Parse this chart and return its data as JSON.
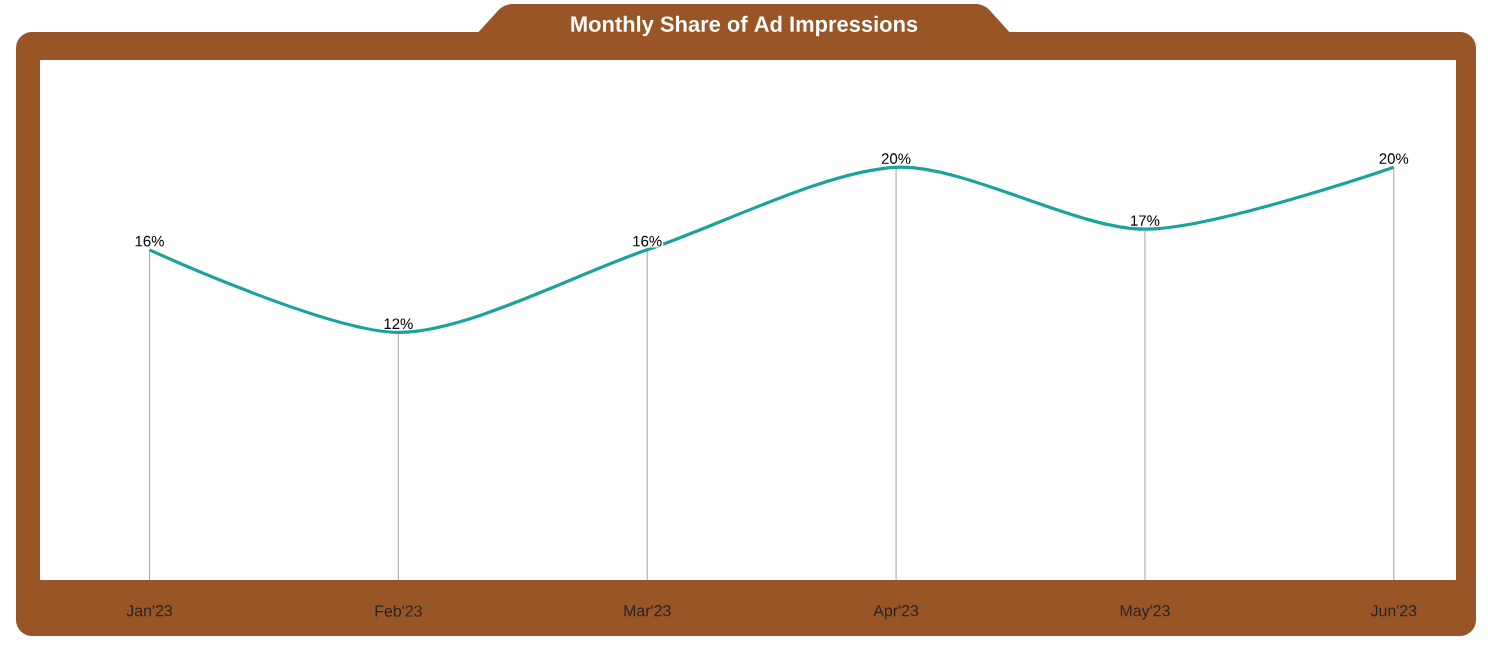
{
  "chart_data": {
    "type": "line",
    "title": "Monthly Share of Ad Impressions",
    "categories": [
      "Jan'23",
      "Feb'23",
      "Mar'23",
      "Apr'23",
      "May'23",
      "Jun'23"
    ],
    "series": [
      {
        "color": "#1aa39a",
        "values": [
          16,
          12,
          16,
          20,
          17,
          20
        ],
        "value_labels": [
          "16%",
          "12%",
          "16%",
          "20%",
          "17%",
          "20%"
        ]
      }
    ],
    "marker": "none",
    "line_style": "solid",
    "grid": "x"
  }
}
